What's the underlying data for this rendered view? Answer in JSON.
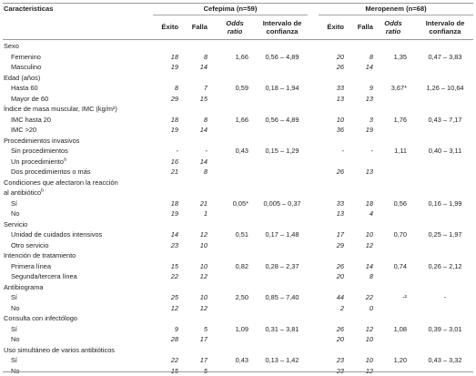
{
  "header": {
    "col_title": "Caracteristicas",
    "group1": "Cefepima (n=59)",
    "group2": "Meropenem (n=68)",
    "exito": "Éxito",
    "falla": "Falla",
    "odds": [
      "Odds",
      "ratio"
    ],
    "ic": [
      "Intervalo de",
      "confianza"
    ]
  },
  "rows": [
    {
      "type": "cat",
      "label": "Sexo"
    },
    {
      "type": "sub",
      "label": "Femenino",
      "v": [
        "18",
        "8",
        "1,66",
        "0,56 – 4,89",
        "20",
        "8",
        "1,35",
        "0,47 – 3,83"
      ]
    },
    {
      "type": "sub",
      "label": "Masculino",
      "v": [
        "19",
        "14",
        "",
        "",
        "26",
        "14",
        "",
        ""
      ]
    },
    {
      "type": "cat",
      "label": "Edad (años)"
    },
    {
      "type": "sub",
      "label": "Hasta 60",
      "v": [
        "8",
        "7",
        "0,59",
        "0,18 – 1,94",
        "33",
        "9",
        "3,67*",
        "1,26 – 10,64"
      ]
    },
    {
      "type": "sub",
      "label": "Mayor de 60",
      "v": [
        "29",
        "15",
        "",
        "",
        "13",
        "13",
        "",
        ""
      ]
    },
    {
      "type": "cat",
      "label": "Índice de masa muscular, IMC (kg/m²)"
    },
    {
      "type": "sub",
      "label": "IMC hasta 20",
      "v": [
        "18",
        "8",
        "1,66",
        "0,56 – 4,89",
        "10",
        "3",
        "1,76",
        "0,43 – 7,17"
      ]
    },
    {
      "type": "sub",
      "label": "IMC >20",
      "v": [
        "19",
        "14",
        "",
        "",
        "36",
        "19",
        "",
        ""
      ]
    },
    {
      "type": "cat",
      "label": "Procedimientos invasivos"
    },
    {
      "type": "sub",
      "label": "Sin procedimientos",
      "v": [
        "-",
        "-",
        "0,43",
        "0,15 – 1,29",
        "-",
        "-",
        "1,11",
        "0,40 – 3,11"
      ]
    },
    {
      "type": "sub",
      "label": "Un procedimiento",
      "sup": "a",
      "v": [
        "16",
        "14",
        "",
        "",
        "",
        "",
        "",
        ""
      ]
    },
    {
      "type": "sub",
      "label": "Dos procedimientos o más",
      "v": [
        "21",
        "8",
        "",
        "",
        "26",
        "13",
        "",
        ""
      ]
    },
    {
      "type": "cat",
      "label": "Condiciones que afectaron la reacción"
    },
    {
      "type": "cat",
      "label": "al antibiótico",
      "sup": "b"
    },
    {
      "type": "sub",
      "label": "Sí",
      "v": [
        "18",
        "21",
        "0,05*",
        "0,005 – 0,37",
        "33",
        "18",
        "0,56",
        "0,16 – 1,99"
      ]
    },
    {
      "type": "sub",
      "label": "No",
      "v": [
        "19",
        "1",
        "",
        "",
        "13",
        "4",
        "",
        ""
      ]
    },
    {
      "type": "cat",
      "label": "Servicio"
    },
    {
      "type": "sub",
      "label": "Unidad de cuidados intensivos",
      "v": [
        "14",
        "12",
        "0,51",
        "0,17 – 1,48",
        "17",
        "10",
        "0,70",
        "0,25 – 1,97"
      ]
    },
    {
      "type": "sub",
      "label": "Otro servicio",
      "v": [
        "23",
        "10",
        "",
        "",
        "29",
        "12",
        "",
        ""
      ]
    },
    {
      "type": "cat",
      "label": "Intención de tratamiento"
    },
    {
      "type": "sub",
      "label": "Primera línea",
      "v": [
        "15",
        "10",
        "0,82",
        "0,28 – 2,37",
        "26",
        "14",
        "0,74",
        "0,26 – 2,12"
      ]
    },
    {
      "type": "sub",
      "label": "Segunda/tercera línea",
      "v": [
        "22",
        "12",
        "",
        "",
        "20",
        "8",
        "",
        ""
      ]
    },
    {
      "type": "cat",
      "label": "Antibiograma"
    },
    {
      "type": "sub",
      "label": "Sí",
      "v": [
        "25",
        "10",
        "2,50",
        "0,85 – 7,40",
        "44",
        "22",
        "-²",
        "-"
      ]
    },
    {
      "type": "sub",
      "label": "No",
      "v": [
        "12",
        "12",
        "",
        "",
        "2",
        "0",
        "",
        ""
      ]
    },
    {
      "type": "cat",
      "label": "Consulta con infectólogo"
    },
    {
      "type": "sub",
      "label": "Sí",
      "v": [
        "9",
        "5",
        "1,09",
        "0,31 – 3,81",
        "26",
        "12",
        "1,08",
        "0,39 – 3,01"
      ]
    },
    {
      "type": "sub",
      "label": "No",
      "v": [
        "28",
        "17",
        "",
        "",
        "20",
        "10",
        "",
        ""
      ]
    },
    {
      "type": "cat",
      "label": "Uso simultáneo de varios antibióticos"
    },
    {
      "type": "sub",
      "label": "Sí",
      "v": [
        "22",
        "17",
        "0,43",
        "0,13 – 1,42",
        "23",
        "10",
        "1,20",
        "0,43 – 3,32"
      ]
    },
    {
      "type": "sub",
      "label": "No",
      "v": [
        "15",
        "5",
        "",
        "",
        "23",
        "12",
        "",
        ""
      ]
    }
  ]
}
